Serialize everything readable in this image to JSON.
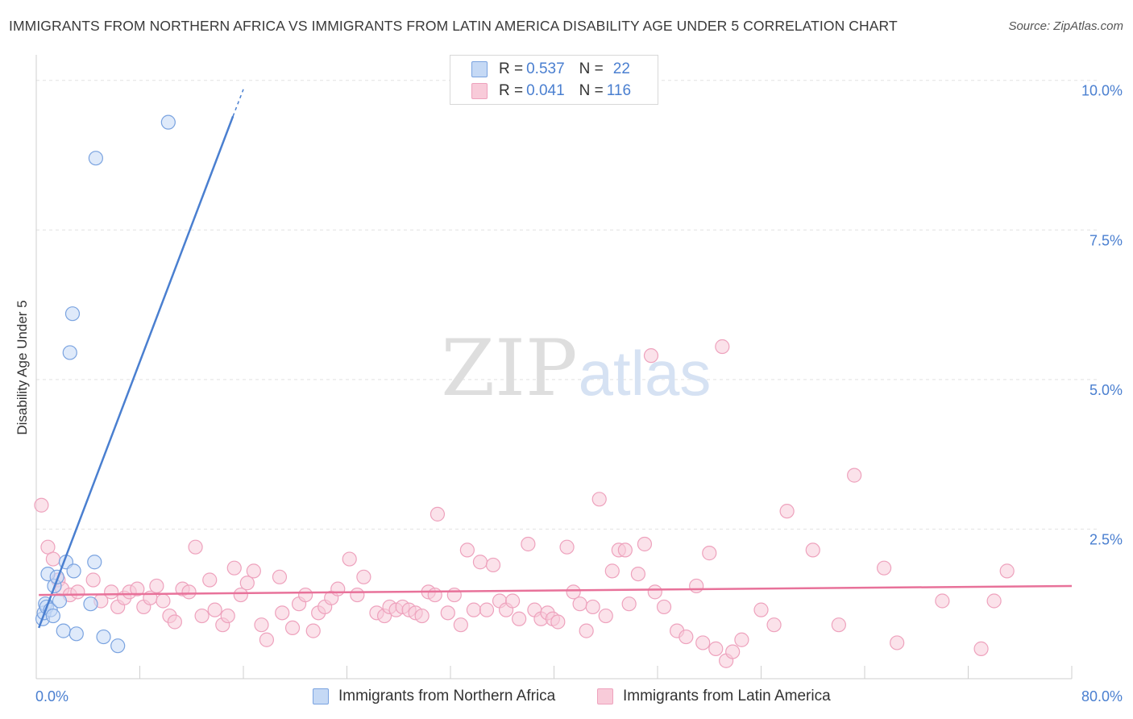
{
  "title": "IMMIGRANTS FROM NORTHERN AFRICA VS IMMIGRANTS FROM LATIN AMERICA DISABILITY AGE UNDER 5 CORRELATION CHART",
  "source": "Source: ZipAtlas.com",
  "watermark": {
    "zip": "ZIP",
    "atlas": "atlas"
  },
  "legend": {
    "series1": {
      "r_label": "R =",
      "r_value": "0.537",
      "n_label": "N =",
      "n_value": "22"
    },
    "series2": {
      "r_label": "R =",
      "r_value": "0.041",
      "n_label": "N =",
      "n_value": "116"
    }
  },
  "colors": {
    "blue": "#4a7fd0",
    "blue_fill": "#c5d9f5",
    "blue_stroke": "#7aa3e0",
    "pink": "#e8729a",
    "pink_fill": "#f8cbd9",
    "pink_stroke": "#eea2bd",
    "grid": "#e2e2e2",
    "tick_text": "#4a7fd0"
  },
  "chart_data": {
    "type": "scatter",
    "title": "IMMIGRANTS FROM NORTHERN AFRICA VS IMMIGRANTS FROM LATIN AMERICA DISABILITY AGE UNDER 5 CORRELATION CHART",
    "xlabel": "",
    "ylabel": "Disability Age Under 5",
    "xlim": [
      0,
      80
    ],
    "ylim": [
      0,
      10.4
    ],
    "x_tick_labels": [
      "0.0%",
      "80.0%"
    ],
    "y_ticks": [
      2.5,
      5.0,
      7.5,
      10.0
    ],
    "y_tick_labels": [
      "2.5%",
      "5.0%",
      "7.5%",
      "10.0%"
    ],
    "series": [
      {
        "name": "Immigrants from Northern Africa",
        "color": "blue",
        "trend": {
          "x": [
            0.2,
            15.2
          ],
          "y": [
            0.85,
            9.4
          ],
          "dashed_to": [
            16.0,
            9.85
          ]
        },
        "points": [
          [
            0.5,
            1.0
          ],
          [
            0.6,
            1.1
          ],
          [
            0.7,
            1.25
          ],
          [
            0.8,
            1.2
          ],
          [
            0.9,
            1.75
          ],
          [
            1.1,
            1.15
          ],
          [
            1.3,
            1.05
          ],
          [
            1.4,
            1.55
          ],
          [
            1.6,
            1.7
          ],
          [
            1.8,
            1.3
          ],
          [
            2.1,
            0.8
          ],
          [
            2.3,
            1.95
          ],
          [
            2.6,
            5.45
          ],
          [
            2.8,
            6.1
          ],
          [
            2.9,
            1.8
          ],
          [
            3.1,
            0.75
          ],
          [
            4.2,
            1.25
          ],
          [
            4.5,
            1.95
          ],
          [
            5.2,
            0.7
          ],
          [
            6.3,
            0.55
          ],
          [
            4.6,
            8.7
          ],
          [
            10.2,
            9.3
          ]
        ]
      },
      {
        "name": "Immigrants from Latin America",
        "color": "pink",
        "trend": {
          "x": [
            0.2,
            80.0
          ],
          "y": [
            1.4,
            1.55
          ]
        },
        "points": [
          [
            0.4,
            2.9
          ],
          [
            0.9,
            2.2
          ],
          [
            1.3,
            2.0
          ],
          [
            1.7,
            1.65
          ],
          [
            2.0,
            1.5
          ],
          [
            2.6,
            1.4
          ],
          [
            3.2,
            1.45
          ],
          [
            4.4,
            1.65
          ],
          [
            5.0,
            1.3
          ],
          [
            5.8,
            1.45
          ],
          [
            6.3,
            1.2
          ],
          [
            6.8,
            1.35
          ],
          [
            7.2,
            1.45
          ],
          [
            7.8,
            1.5
          ],
          [
            8.3,
            1.2
          ],
          [
            8.8,
            1.35
          ],
          [
            9.3,
            1.55
          ],
          [
            9.8,
            1.3
          ],
          [
            10.3,
            1.05
          ],
          [
            10.7,
            0.95
          ],
          [
            11.3,
            1.5
          ],
          [
            11.8,
            1.45
          ],
          [
            12.3,
            2.2
          ],
          [
            12.8,
            1.05
          ],
          [
            13.4,
            1.65
          ],
          [
            13.8,
            1.15
          ],
          [
            14.4,
            0.9
          ],
          [
            14.8,
            1.05
          ],
          [
            15.3,
            1.85
          ],
          [
            15.8,
            1.4
          ],
          [
            16.3,
            1.6
          ],
          [
            16.8,
            1.8
          ],
          [
            17.4,
            0.9
          ],
          [
            17.8,
            0.65
          ],
          [
            18.8,
            1.7
          ],
          [
            19.0,
            1.1
          ],
          [
            19.8,
            0.85
          ],
          [
            20.3,
            1.25
          ],
          [
            20.8,
            1.4
          ],
          [
            21.4,
            0.8
          ],
          [
            21.8,
            1.1
          ],
          [
            22.3,
            1.2
          ],
          [
            22.8,
            1.35
          ],
          [
            23.3,
            1.5
          ],
          [
            24.2,
            2.0
          ],
          [
            24.8,
            1.4
          ],
          [
            25.3,
            1.7
          ],
          [
            26.3,
            1.1
          ],
          [
            26.9,
            1.05
          ],
          [
            27.3,
            1.2
          ],
          [
            27.8,
            1.15
          ],
          [
            28.3,
            1.2
          ],
          [
            28.8,
            1.15
          ],
          [
            29.3,
            1.1
          ],
          [
            29.8,
            1.05
          ],
          [
            30.3,
            1.45
          ],
          [
            30.8,
            1.4
          ],
          [
            31.0,
            2.75
          ],
          [
            31.8,
            1.1
          ],
          [
            32.3,
            1.4
          ],
          [
            32.8,
            0.9
          ],
          [
            33.3,
            2.15
          ],
          [
            33.8,
            1.15
          ],
          [
            34.3,
            1.95
          ],
          [
            34.8,
            1.15
          ],
          [
            35.3,
            1.9
          ],
          [
            35.8,
            1.3
          ],
          [
            36.3,
            1.15
          ],
          [
            36.8,
            1.3
          ],
          [
            37.3,
            1.0
          ],
          [
            38.0,
            2.25
          ],
          [
            38.5,
            1.15
          ],
          [
            39.0,
            1.0
          ],
          [
            39.5,
            1.1
          ],
          [
            39.9,
            1.0
          ],
          [
            40.3,
            0.95
          ],
          [
            41.0,
            2.2
          ],
          [
            41.5,
            1.45
          ],
          [
            42.0,
            1.25
          ],
          [
            42.5,
            0.8
          ],
          [
            43.0,
            1.2
          ],
          [
            43.5,
            3.0
          ],
          [
            44.0,
            1.05
          ],
          [
            44.5,
            1.8
          ],
          [
            45.0,
            2.15
          ],
          [
            45.5,
            2.15
          ],
          [
            45.8,
            1.25
          ],
          [
            46.5,
            1.75
          ],
          [
            47.0,
            2.25
          ],
          [
            47.5,
            5.4
          ],
          [
            47.8,
            1.45
          ],
          [
            48.5,
            1.2
          ],
          [
            49.5,
            0.8
          ],
          [
            50.2,
            0.7
          ],
          [
            51.0,
            1.55
          ],
          [
            51.5,
            0.6
          ],
          [
            52.0,
            2.1
          ],
          [
            52.5,
            0.5
          ],
          [
            53.0,
            5.55
          ],
          [
            53.3,
            0.3
          ],
          [
            53.8,
            0.45
          ],
          [
            54.5,
            0.65
          ],
          [
            56.0,
            1.15
          ],
          [
            57.0,
            0.9
          ],
          [
            58.0,
            2.8
          ],
          [
            60.0,
            2.15
          ],
          [
            62.0,
            0.9
          ],
          [
            63.2,
            3.4
          ],
          [
            65.5,
            1.85
          ],
          [
            66.5,
            0.6
          ],
          [
            70.0,
            1.3
          ],
          [
            73.0,
            0.5
          ],
          [
            74.0,
            1.3
          ],
          [
            75.0,
            1.8
          ]
        ]
      }
    ]
  },
  "bottom_legend": {
    "item1": "Immigrants from Northern Africa",
    "item2": "Immigrants from Latin America"
  }
}
